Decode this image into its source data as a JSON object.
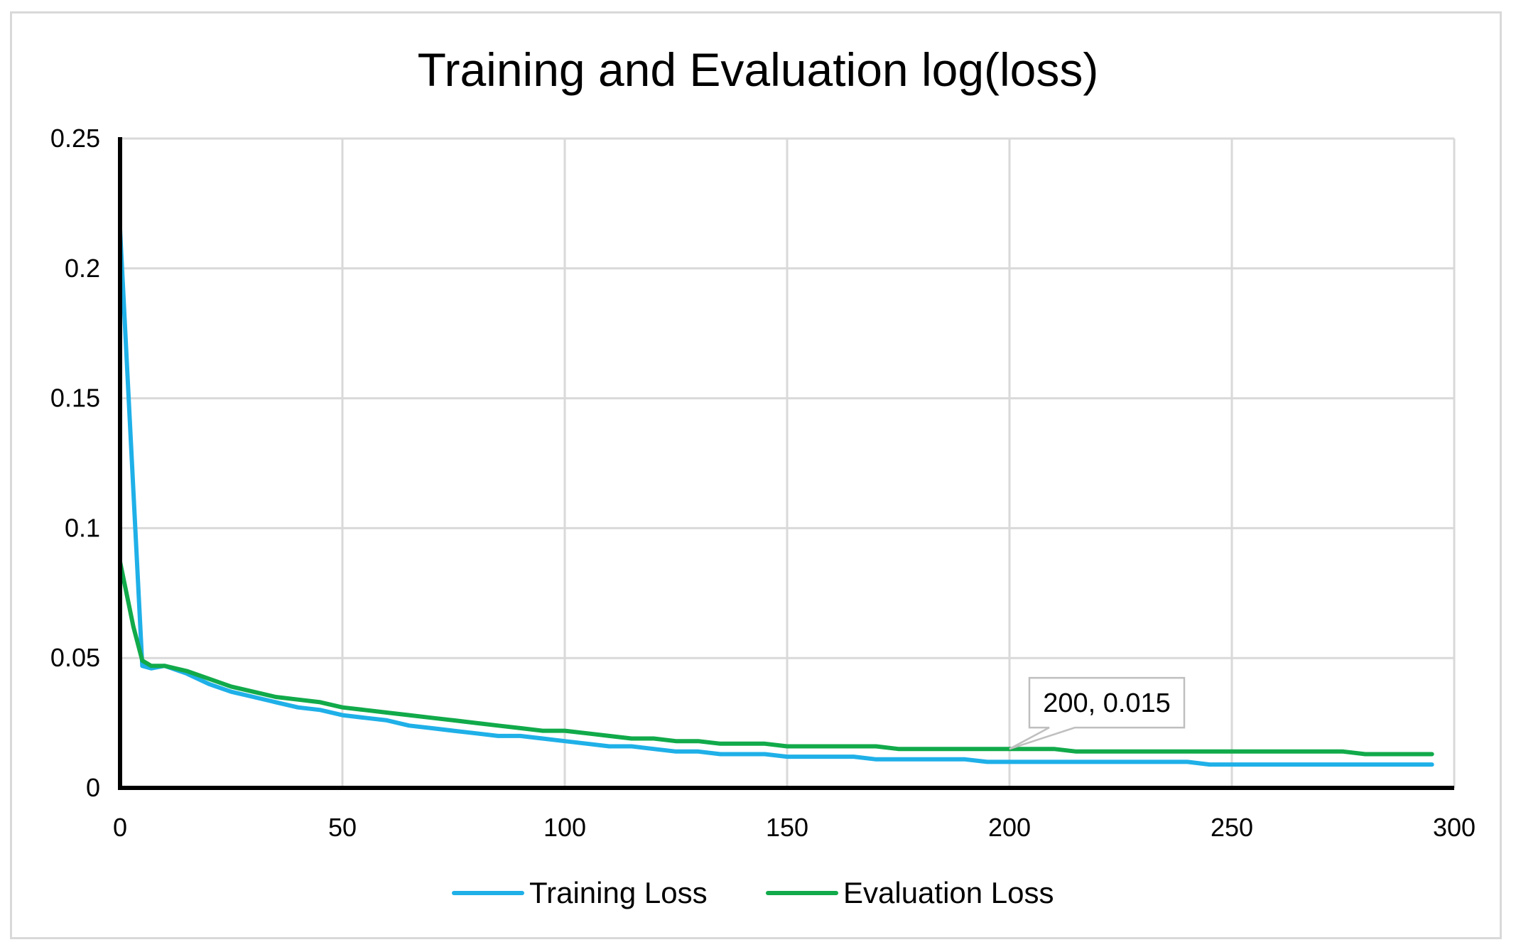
{
  "chart_data": {
    "type": "line",
    "title": "Training and Evaluation log(loss)",
    "xlabel": "",
    "ylabel": "",
    "xlim": [
      0,
      300
    ],
    "ylim": [
      0,
      0.25
    ],
    "x_ticks": [
      0,
      50,
      100,
      150,
      200,
      250,
      300
    ],
    "x_tick_labels": [
      "0",
      "50",
      "100",
      "150",
      "200",
      "250",
      "300"
    ],
    "y_ticks": [
      0,
      0.05,
      0.1,
      0.15,
      0.2,
      0.25
    ],
    "y_tick_labels": [
      "0",
      "0.05",
      "0.1",
      "0.15",
      "0.2",
      "0.25"
    ],
    "grid": true,
    "legend_position": "bottom",
    "series": [
      {
        "name": "Training Loss",
        "color": "#1fb0e8",
        "x": [
          0,
          5,
          7,
          10,
          15,
          20,
          25,
          30,
          35,
          40,
          45,
          50,
          55,
          60,
          65,
          70,
          75,
          80,
          85,
          90,
          95,
          100,
          105,
          110,
          115,
          120,
          125,
          130,
          135,
          140,
          145,
          150,
          155,
          160,
          165,
          170,
          175,
          180,
          185,
          190,
          195,
          200,
          205,
          210,
          215,
          220,
          225,
          230,
          235,
          240,
          245,
          250,
          255,
          260,
          265,
          270,
          275,
          280,
          285,
          290,
          295
        ],
        "y": [
          0.215,
          0.047,
          0.046,
          0.047,
          0.044,
          0.04,
          0.037,
          0.035,
          0.033,
          0.031,
          0.03,
          0.028,
          0.027,
          0.026,
          0.024,
          0.023,
          0.022,
          0.021,
          0.02,
          0.02,
          0.019,
          0.018,
          0.017,
          0.016,
          0.016,
          0.015,
          0.014,
          0.014,
          0.013,
          0.013,
          0.013,
          0.012,
          0.012,
          0.012,
          0.012,
          0.011,
          0.011,
          0.011,
          0.011,
          0.011,
          0.01,
          0.01,
          0.01,
          0.01,
          0.01,
          0.01,
          0.01,
          0.01,
          0.01,
          0.01,
          0.009,
          0.009,
          0.009,
          0.009,
          0.009,
          0.009,
          0.009,
          0.009,
          0.009,
          0.009,
          0.009
        ]
      },
      {
        "name": "Evaluation Loss",
        "color": "#11aa4a",
        "x": [
          0,
          3,
          5,
          7,
          10,
          15,
          20,
          25,
          30,
          35,
          40,
          45,
          50,
          55,
          60,
          65,
          70,
          75,
          80,
          85,
          90,
          95,
          100,
          105,
          110,
          115,
          120,
          125,
          130,
          135,
          140,
          145,
          150,
          155,
          160,
          165,
          170,
          175,
          180,
          185,
          190,
          195,
          200,
          205,
          210,
          215,
          220,
          225,
          230,
          235,
          240,
          245,
          250,
          255,
          260,
          265,
          270,
          275,
          280,
          285,
          290,
          295
        ],
        "y": [
          0.087,
          0.062,
          0.049,
          0.047,
          0.047,
          0.045,
          0.042,
          0.039,
          0.037,
          0.035,
          0.034,
          0.033,
          0.031,
          0.03,
          0.029,
          0.028,
          0.027,
          0.026,
          0.025,
          0.024,
          0.023,
          0.022,
          0.022,
          0.021,
          0.02,
          0.019,
          0.019,
          0.018,
          0.018,
          0.017,
          0.017,
          0.017,
          0.016,
          0.016,
          0.016,
          0.016,
          0.016,
          0.015,
          0.015,
          0.015,
          0.015,
          0.015,
          0.015,
          0.015,
          0.015,
          0.014,
          0.014,
          0.014,
          0.014,
          0.014,
          0.014,
          0.014,
          0.014,
          0.014,
          0.014,
          0.014,
          0.014,
          0.014,
          0.013,
          0.013,
          0.013,
          0.013
        ]
      }
    ],
    "annotations": [
      {
        "text": "200, 0.015",
        "x": 200,
        "y": 0.015,
        "series": "Evaluation Loss"
      }
    ]
  }
}
